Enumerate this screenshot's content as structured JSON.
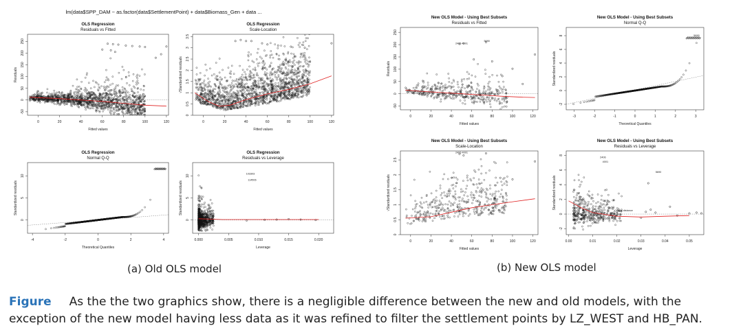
{
  "formula_header": "lm(data$SPP_DAM ~ as.factor(data$SettlementPoint) + data$Biomass_Gen + data ...",
  "caption_a": "(a) Old OLS model",
  "caption_b": "(b) New OLS model",
  "figure_label": "Figure",
  "figure_text": "As the the two graphics show, there is a negligible difference between the new and old models, with the exception of the new model having less data as it was refined to filter the settlement points by LZ_WEST and HB_PAN.",
  "colors": {
    "points": "#111111",
    "smooth": "#e02020",
    "ref": "#777777",
    "label": "#2a73b8"
  },
  "chart_data": [
    {
      "id": "old_rvf",
      "type": "scatter",
      "title": "OLS Regression",
      "subtitle": "Residuals vs Fitted",
      "xlabel": "Fitted values",
      "ylabel": "Residuals",
      "xlim": [
        -10,
        122
      ],
      "ylim": [
        -65,
        280
      ],
      "xticks": [
        0,
        20,
        40,
        60,
        80,
        100,
        120
      ],
      "yticks": [
        -50,
        0,
        50,
        100,
        150,
        200,
        250
      ],
      "ytick_rot": true,
      "smooth": [
        [
          -8,
          12
        ],
        [
          0,
          10
        ],
        [
          20,
          6
        ],
        [
          40,
          0
        ],
        [
          60,
          -6
        ],
        [
          80,
          -14
        ],
        [
          100,
          -22
        ],
        [
          120,
          -26
        ]
      ],
      "hline": 0,
      "cloud": {
        "xr": [
          -8,
          100
        ],
        "shape": "fan",
        "n": 1400,
        "seed": 11,
        "center": [
          [
            -8,
            8
          ],
          [
            30,
            3
          ],
          [
            60,
            -6
          ],
          [
            100,
            -22
          ]
        ],
        "spread": [
          [
            -8,
            8
          ],
          [
            40,
            25
          ],
          [
            80,
            55
          ],
          [
            100,
            70
          ]
        ],
        "skew": 2.2
      },
      "outliers": [
        [
          65,
          240
        ],
        [
          70,
          238
        ],
        [
          75,
          236
        ],
        [
          82,
          232
        ],
        [
          88,
          230
        ],
        [
          95,
          228
        ],
        [
          100,
          226
        ],
        [
          60,
          215
        ],
        [
          68,
          212
        ],
        [
          72,
          205
        ],
        [
          110,
          180
        ],
        [
          115,
          195
        ],
        [
          120,
          228
        ]
      ],
      "point_labels": []
    },
    {
      "id": "old_sl",
      "type": "scatter",
      "title": "OLS Regression",
      "subtitle": "Scale-Location",
      "xlabel": "Fitted values",
      "ylabel": "√Standardized residuals",
      "xlim": [
        -10,
        122
      ],
      "ylim": [
        0,
        3.6
      ],
      "xticks": [
        0,
        20,
        40,
        60,
        80,
        100,
        120
      ],
      "yticks": [
        0,
        0.5,
        1,
        1.5,
        2,
        2.5,
        3,
        3.5
      ],
      "ytick_rot": true,
      "smooth": [
        [
          -8,
          1.0
        ],
        [
          5,
          0.6
        ],
        [
          15,
          0.4
        ],
        [
          25,
          0.45
        ],
        [
          40,
          0.7
        ],
        [
          60,
          0.95
        ],
        [
          80,
          1.15
        ],
        [
          100,
          1.4
        ],
        [
          120,
          1.75
        ]
      ],
      "hline": null,
      "cloud": {
        "xr": [
          -8,
          100
        ],
        "shape": "sl",
        "n": 1600,
        "seed": 17,
        "center": [
          [
            -8,
            0.8
          ],
          [
            20,
            0.5
          ],
          [
            60,
            0.9
          ],
          [
            100,
            1.3
          ]
        ],
        "spread": [
          [
            -8,
            0.6
          ],
          [
            20,
            0.8
          ],
          [
            60,
            1.1
          ],
          [
            100,
            1.2
          ]
        ],
        "skew": 1.0
      },
      "outliers": [
        [
          30,
          3.3
        ],
        [
          35,
          3.35
        ],
        [
          40,
          3.3
        ],
        [
          45,
          3.3
        ],
        [
          55,
          3.2
        ],
        [
          60,
          3.15
        ],
        [
          70,
          3.1
        ],
        [
          82,
          3.05
        ],
        [
          95,
          3.0
        ],
        [
          120,
          3.2
        ]
      ],
      "point_labels": []
    },
    {
      "id": "old_qq",
      "type": "qq",
      "title": "OLS Regression",
      "subtitle": "Normal Q-Q",
      "xlabel": "Theoretical Quantiles",
      "ylabel": "Standardized residuals",
      "xlim": [
        -4.3,
        4.3
      ],
      "ylim": [
        -3,
        13
      ],
      "xticks": [
        -4,
        -2,
        0,
        2,
        4
      ],
      "yticks": [
        0,
        5,
        10
      ],
      "ytick_rot": true,
      "qq": {
        "n": 700,
        "tail_start": 1.5,
        "tail_scale": 2.6,
        "top": 11.5
      },
      "refline": [
        [
          -4.3,
          -1.2
        ],
        [
          4.3,
          1.2
        ]
      ],
      "point_labels": []
    },
    {
      "id": "old_rvl",
      "type": "scatter",
      "title": "OLS Regression",
      "subtitle": "Residuals vs Leverage",
      "xlabel": "Leverage",
      "ylabel": "Standardized residuals",
      "xlim": [
        -0.001,
        0.0225
      ],
      "ylim": [
        -3,
        13
      ],
      "xticks": [
        0,
        0.005,
        0.01,
        0.015,
        0.02
      ],
      "xtick_labels": [
        "0.000",
        "0.005",
        "0.010",
        "0.015",
        "0.020"
      ],
      "yticks": [
        0,
        5,
        10
      ],
      "ytick_rot": true,
      "smooth": [
        [
          0,
          0.3
        ],
        [
          0.004,
          0.1
        ],
        [
          0.01,
          0.1
        ],
        [
          0.02,
          0.1
        ]
      ],
      "hline": 0,
      "cloud": {
        "xr": [
          0,
          0.0025
        ],
        "shape": "lev",
        "n": 900,
        "seed": 23,
        "center": [
          [
            0,
            0
          ],
          [
            0.0025,
            0
          ]
        ],
        "spread": [
          [
            0,
            1.6
          ],
          [
            0.0025,
            1.2
          ]
        ],
        "skew": 3.5
      },
      "outliers": [
        [
          0.013,
          0.1
        ],
        [
          0.015,
          0.2
        ],
        [
          0.017,
          0.1
        ],
        [
          0.0195,
          0.0
        ],
        [
          0.008,
          -0.1
        ],
        [
          0.011,
          0.05
        ]
      ],
      "point_labels": [
        {
          "x": 0.0079,
          "y": 10.3,
          "text": "103303"
        },
        {
          "x": 0.0082,
          "y": 8.9,
          "text": "114506"
        }
      ]
    },
    {
      "id": "new_rvf",
      "type": "scatter",
      "title": "New OLS Model - Using Best Subsets",
      "subtitle": "Residuals vs Fitted",
      "xlabel": "Fitted values",
      "ylabel": "Residuals",
      "xlim": [
        -10,
        125
      ],
      "ylim": [
        -65,
        270
      ],
      "xticks": [
        0,
        20,
        40,
        60,
        80,
        100,
        120
      ],
      "yticks": [
        -50,
        0,
        50,
        100,
        150,
        200,
        250
      ],
      "ytick_rot": true,
      "smooth": [
        [
          -5,
          15
        ],
        [
          10,
          10
        ],
        [
          30,
          5
        ],
        [
          50,
          0
        ],
        [
          70,
          -5
        ],
        [
          90,
          -10
        ],
        [
          110,
          -14
        ],
        [
          122,
          -15
        ]
      ],
      "hline": 0,
      "cloud": {
        "xr": [
          -5,
          95
        ],
        "shape": "fan",
        "n": 420,
        "seed": 31,
        "center": [
          [
            -5,
            15
          ],
          [
            40,
            2
          ],
          [
            95,
            -12
          ]
        ],
        "spread": [
          [
            -5,
            12
          ],
          [
            40,
            30
          ],
          [
            95,
            40
          ]
        ],
        "skew": 1.6
      },
      "outliers": [
        [
          48,
          203
        ],
        [
          52,
          205
        ],
        [
          74,
          210
        ],
        [
          62,
          140
        ],
        [
          80,
          132
        ],
        [
          100,
          102
        ],
        [
          122,
          160
        ],
        [
          90,
          72
        ],
        [
          110,
          40
        ]
      ],
      "point_labels": [
        {
          "x": 44,
          "y": 202,
          "text": "2406 4001"
        },
        {
          "x": 72,
          "y": 212,
          "text": "5690"
        }
      ]
    },
    {
      "id": "new_qq",
      "type": "qq",
      "title": "New OLS Model - Using Best Subsets",
      "subtitle": "Normal Q-Q",
      "xlabel": "Theoretical Quantiles",
      "ylabel": "Standardized residuals",
      "xlim": [
        -3.4,
        3.4
      ],
      "ylim": [
        -2.8,
        9.2
      ],
      "xticks": [
        -3,
        -2,
        -1,
        0,
        1,
        2,
        3
      ],
      "yticks": [
        -2,
        0,
        2,
        4,
        6,
        8
      ],
      "ytick_rot": true,
      "qq": {
        "n": 420,
        "tail_start": 1.3,
        "tail_scale": 2.8,
        "top": 7.6
      },
      "refline": [
        [
          -3.4,
          -2.0
        ],
        [
          3.4,
          2.2
        ]
      ],
      "point_labels": [
        {
          "x": 2.9,
          "y": 7.9,
          "text": "5690"
        }
      ]
    },
    {
      "id": "new_sl",
      "type": "scatter",
      "title": "New OLS Model - Using Best Subsets",
      "subtitle": "Scale-Location",
      "xlabel": "Fitted values",
      "ylabel": "√Standardized residuals",
      "xlim": [
        -10,
        125
      ],
      "ylim": [
        0,
        2.8
      ],
      "xticks": [
        0,
        20,
        40,
        60,
        80,
        100,
        120
      ],
      "yticks": [
        0,
        0.5,
        1,
        1.5,
        2,
        2.5
      ],
      "ytick_rot": true,
      "smooth": [
        [
          -5,
          0.55
        ],
        [
          20,
          0.6
        ],
        [
          40,
          0.75
        ],
        [
          60,
          0.9
        ],
        [
          80,
          1.0
        ],
        [
          100,
          1.1
        ],
        [
          122,
          1.2
        ]
      ],
      "hline": null,
      "cloud": {
        "xr": [
          -5,
          95
        ],
        "shape": "sl",
        "n": 420,
        "seed": 37,
        "center": [
          [
            -5,
            0.5
          ],
          [
            40,
            0.8
          ],
          [
            95,
            1.0
          ]
        ],
        "spread": [
          [
            -5,
            0.5
          ],
          [
            40,
            0.7
          ],
          [
            95,
            0.8
          ]
        ],
        "skew": 0.8
      },
      "outliers": [
        [
          48,
          2.7
        ],
        [
          52,
          2.65
        ],
        [
          74,
          2.72
        ],
        [
          100,
          1.85
        ],
        [
          122,
          2.45
        ],
        [
          88,
          1.9
        ]
      ],
      "point_labels": [
        {
          "x": 44,
          "y": 2.72,
          "text": "2406 4001"
        },
        {
          "x": 72,
          "y": 2.8,
          "text": "5690"
        }
      ]
    },
    {
      "id": "new_rvl",
      "type": "scatter",
      "title": "New OLS Model - Using Best Subsets",
      "subtitle": "Residuals vs Leverage",
      "xlabel": "Leverage",
      "ylabel": "Standardized residuals",
      "xlim": [
        -0.001,
        0.056
      ],
      "ylim": [
        -2.8,
        8.6
      ],
      "xticks": [
        0,
        0.01,
        0.02,
        0.03,
        0.04,
        0.05
      ],
      "xtick_labels": [
        "0.00",
        "0.01",
        "0.02",
        "0.03",
        "0.04",
        "0.05"
      ],
      "yticks": [
        -2,
        0,
        2,
        4,
        6,
        8
      ],
      "ytick_rot": true,
      "smooth": [
        [
          0,
          1.8
        ],
        [
          0.005,
          0.9
        ],
        [
          0.01,
          0.2
        ],
        [
          0.02,
          -0.3
        ],
        [
          0.03,
          -0.4
        ],
        [
          0.04,
          -0.3
        ],
        [
          0.05,
          -0.2
        ]
      ],
      "hline": 0,
      "cloud": {
        "xr": [
          0.002,
          0.022
        ],
        "shape": "lev",
        "n": 420,
        "seed": 41,
        "center": [
          [
            0.002,
            0
          ],
          [
            0.022,
            0
          ]
        ],
        "spread": [
          [
            0.002,
            1.3
          ],
          [
            0.022,
            0.8
          ]
        ],
        "skew": 1.5
      },
      "outliers": [
        [
          0.03,
          -0.5
        ],
        [
          0.032,
          0.3
        ],
        [
          0.034,
          0.6
        ],
        [
          0.05,
          0.1
        ],
        [
          0.053,
          0.2
        ],
        [
          0.055,
          0.1
        ],
        [
          0.045,
          -0.2
        ],
        [
          0.036,
          0.2
        ],
        [
          0.042,
          1.0
        ],
        [
          0.033,
          4.2
        ]
      ],
      "point_labels": [
        {
          "x": 0.013,
          "y": 7.6,
          "text": "2406"
        },
        {
          "x": 0.014,
          "y": 7.0,
          "text": "4001"
        },
        {
          "x": 0.036,
          "y": 5.6,
          "text": "5690"
        },
        {
          "x": 0.019,
          "y": 0.4,
          "text": "Cook's distance"
        }
      ]
    }
  ]
}
